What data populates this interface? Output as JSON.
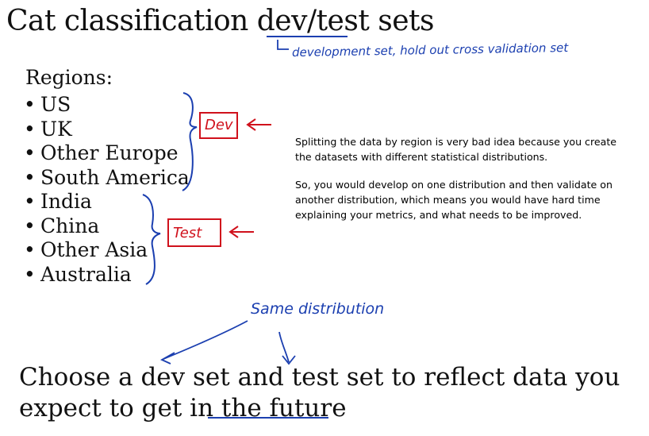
{
  "slide": {
    "title": "Cat classification dev/test sets",
    "title_annotation": "development set, hold out cross validation set",
    "regions_heading": "Regions:",
    "regions": [
      "US",
      "UK",
      "Other Europe",
      "South America",
      "India",
      "China",
      "Other Asia",
      "Australia"
    ],
    "dev_label": "Dev",
    "test_label": "Test",
    "same_distribution": "Same distribution",
    "bottom_text_line1": "Choose a dev set and test set to reflect data you",
    "bottom_text_line2": "expect to get in the future"
  },
  "note": {
    "paragraph1": "Splitting the data by region is very bad idea because you create the datasets with different statistical distributions.",
    "paragraph2": "So, you would develop on one distribution and then validate on another distribution, which means you would have hard time explaining your metrics, and what needs to be improved."
  },
  "colors": {
    "ink_blue": "#1b3fb0",
    "ink_red": "#d0111c"
  }
}
